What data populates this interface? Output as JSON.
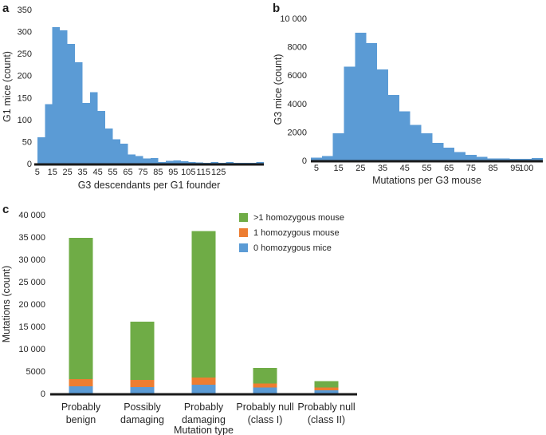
{
  "figure": {
    "background": "#ffffff",
    "text_color": "#262626",
    "axis_color": "#1a1a1a",
    "histogram_bar_color": "#5B9BD5"
  },
  "panels": {
    "a": {
      "letter": "a"
    },
    "b": {
      "letter": "b"
    },
    "c": {
      "letter": "c"
    }
  },
  "chart_data": [
    {
      "panel": "a",
      "type": "bar",
      "subtype": "histogram",
      "title": "",
      "xlabel": "G3 descendants per G1 founder",
      "ylabel": "G1 mice (count)",
      "bar_color": "#5B9BD5",
      "bin_start": 5,
      "bin_width": 5,
      "values": [
        60,
        135,
        310,
        303,
        272,
        230,
        138,
        162,
        120,
        80,
        55,
        45,
        21,
        17,
        12,
        13,
        4,
        6,
        7,
        5,
        4,
        3,
        2,
        4,
        2,
        4,
        2,
        2,
        2,
        4
      ],
      "xlim": [
        3,
        155
      ],
      "ylim": [
        0,
        350
      ],
      "x_ticks": {
        "values": [
          5,
          15,
          25,
          35,
          45,
          55,
          65,
          75,
          85,
          95,
          105,
          115,
          125
        ],
        "labels": [
          "5",
          "15",
          "25",
          "35",
          "45",
          "55",
          "65",
          "75",
          "85",
          "95",
          "105",
          "115",
          "125"
        ]
      },
      "y_ticks": {
        "values": [
          0,
          50,
          100,
          150,
          200,
          250,
          300,
          350
        ],
        "labels": [
          "0",
          "50",
          "100",
          "150",
          "200",
          "250",
          "300",
          "350"
        ]
      },
      "grid": false,
      "legend": []
    },
    {
      "panel": "b",
      "type": "bar",
      "subtype": "histogram",
      "title": "",
      "xlabel": "Mutations per G3 mouse",
      "ylabel": "G3 mice (count)",
      "bar_color": "#5B9BD5",
      "bin_start": 2.5,
      "bin_width": 5,
      "values": [
        200,
        300,
        1900,
        6600,
        9000,
        8250,
        6400,
        4600,
        3450,
        2500,
        1900,
        1250,
        900,
        600,
        380,
        240,
        150,
        130,
        110,
        110,
        160
      ],
      "xlim": [
        2.5,
        107.5
      ],
      "ylim": [
        0,
        10000
      ],
      "x_ticks": {
        "values": [
          5,
          15,
          25,
          35,
          45,
          55,
          65,
          75,
          85,
          95,
          100
        ],
        "labels": [
          "5",
          "15",
          "25",
          "35",
          "45",
          "55",
          "65",
          "75",
          "85",
          "95",
          "100"
        ]
      },
      "y_ticks": {
        "values": [
          0,
          2000,
          4000,
          6000,
          8000,
          10000
        ],
        "labels": [
          "0",
          "2000",
          "4000",
          "6000",
          "8000",
          "10 000"
        ]
      },
      "grid": false,
      "legend": []
    },
    {
      "panel": "c",
      "type": "bar",
      "subtype": "stacked",
      "title": "",
      "xlabel": "Mutation type",
      "ylabel": "Mutations (count)",
      "categories": [
        [
          "Probably",
          "benign"
        ],
        [
          "Possibly",
          "damaging"
        ],
        [
          "Probably",
          "damaging"
        ],
        [
          "Probably null",
          "(class I)"
        ],
        [
          "Probably null",
          "(class II)"
        ]
      ],
      "series": [
        {
          "name": "0 homozygous mice",
          "color": "#5B9BD5",
          "values": [
            1600,
            1400,
            2000,
            1300,
            700
          ]
        },
        {
          "name": "1 homozygous mouse",
          "color": "#ED7D31",
          "values": [
            1600,
            1600,
            1600,
            900,
            600
          ]
        },
        {
          "name": ">1 homozygous mouse",
          "color": "#6FAC46",
          "values": [
            31600,
            13100,
            32700,
            3500,
            1500
          ]
        }
      ],
      "totals": [
        34800,
        16100,
        36300,
        5700,
        2800
      ],
      "ylim": [
        0,
        40000
      ],
      "y_ticks": {
        "values": [
          0,
          5000,
          10000,
          15000,
          20000,
          25000,
          30000,
          35000,
          40000
        ],
        "labels": [
          "0",
          "5000",
          "10 000",
          "15 000",
          "20 000",
          "25 000",
          "30 000",
          "35 000",
          "40 000"
        ]
      },
      "grid": false,
      "legend_position": "top-right",
      "legend": [
        {
          "label": ">1 homozygous mouse",
          "color": "#6FAC46"
        },
        {
          "label": "1 homozygous mouse",
          "color": "#ED7D31"
        },
        {
          "label": "0 homozygous mice",
          "color": "#5B9BD5"
        }
      ]
    }
  ]
}
